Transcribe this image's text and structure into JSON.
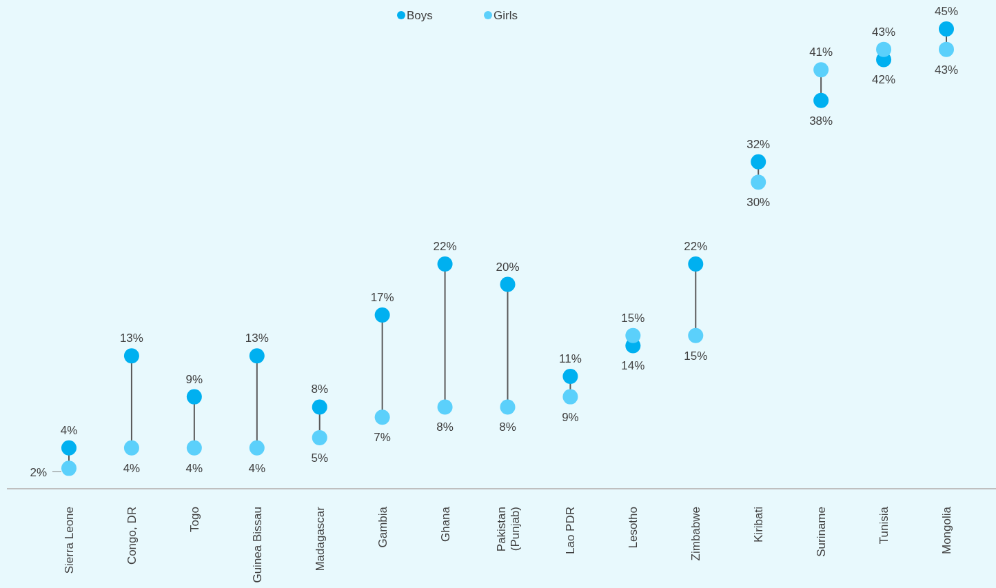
{
  "chart_data": {
    "type": "scatter",
    "categories": [
      "Sierra Leone",
      "Congo, DR",
      "Togo",
      "Guinea Bissau",
      "Madagascar",
      "Gambia",
      "Ghana",
      "Pakistan\n(Punjab)",
      "Lao PDR",
      "Lesotho",
      "Zimbabwe",
      "Kiribati",
      "Suriname",
      "Tunisia",
      "Mongolia"
    ],
    "series": [
      {
        "name": "Boys",
        "color": "#00b0f0",
        "values": [
          4,
          13,
          9,
          13,
          8,
          17,
          22,
          20,
          11,
          14,
          22,
          32,
          38,
          42,
          45
        ],
        "value_labels": [
          "4%",
          "13%",
          "9%",
          "13%",
          "8%",
          "17%",
          "22%",
          "20%",
          "11%",
          "14%",
          "22%",
          "32%",
          "38%",
          "42%",
          "45%"
        ]
      },
      {
        "name": "Girls",
        "color": "#5bd0fb",
        "values": [
          2,
          4,
          4,
          4,
          5,
          7,
          8,
          8,
          9,
          15,
          15,
          30,
          41,
          43,
          43
        ],
        "value_labels": [
          "2%",
          "4%",
          "4%",
          "4%",
          "5%",
          "7%",
          "8%",
          "8%",
          "9%",
          "15%",
          "15%",
          "30%",
          "41%",
          "43%",
          "43%"
        ]
      }
    ],
    "legend": "top",
    "marker": "circle"
  }
}
